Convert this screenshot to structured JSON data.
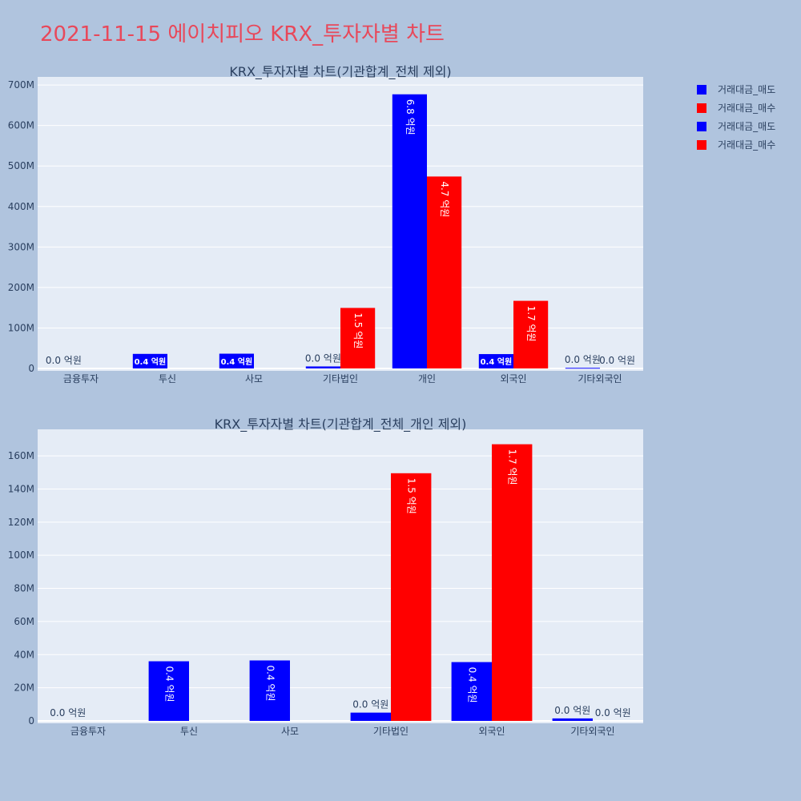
{
  "page_title": "2021-11-15 에이치피오 KRX_투자자별 차트",
  "legend": [
    {
      "label": "거래대금_매도",
      "color": "#0000ff"
    },
    {
      "label": "거래대금_매수",
      "color": "#ff0000"
    },
    {
      "label": "거래대금_매도",
      "color": "#0000ff"
    },
    {
      "label": "거래대금_매수",
      "color": "#ff0000"
    }
  ],
  "chart_data": [
    {
      "type": "bar",
      "title": "KRX_투자자별 차트(기관합계_전체 제외)",
      "categories": [
        "금융투자",
        "투신",
        "사모",
        "기타법인",
        "개인",
        "외국인",
        "기타외국인"
      ],
      "ylim": [
        0,
        720000000
      ],
      "yticks": [
        0,
        100000000,
        200000000,
        300000000,
        400000000,
        500000000,
        600000000,
        700000000
      ],
      "ytick_labels": [
        "0",
        "100M",
        "200M",
        "300M",
        "400M",
        "500M",
        "600M",
        "700M"
      ],
      "grid": true,
      "series": [
        {
          "name": "거래대금_매도",
          "color": "#0000ff",
          "values": [
            0,
            36000000,
            36500000,
            5000000,
            677000000,
            35500000,
            1500000
          ],
          "labels": [
            "0.0 억원",
            "0.4 억원",
            "0.4 억원",
            "0.0 억원",
            "6.8 억원",
            "0.4 억원",
            "0.0 억원"
          ]
        },
        {
          "name": "거래대금_매수",
          "color": "#ff0000",
          "values": [
            0,
            0,
            0,
            149500000,
            474000000,
            167000000,
            0
          ],
          "labels": [
            "",
            "",
            "",
            "1.5 억원",
            "4.7 억원",
            "1.7 억원",
            "0.0 억원"
          ]
        }
      ]
    },
    {
      "type": "bar",
      "title": "KRX_투자자별 차트(기관합계_전체_개인 제외)",
      "categories": [
        "금융투자",
        "투신",
        "사모",
        "기타법인",
        "외국인",
        "기타외국인"
      ],
      "ylim": [
        0,
        176000000
      ],
      "yticks": [
        0,
        20000000,
        40000000,
        60000000,
        80000000,
        100000000,
        120000000,
        140000000,
        160000000
      ],
      "ytick_labels": [
        "0",
        "20M",
        "40M",
        "60M",
        "80M",
        "100M",
        "120M",
        "140M",
        "160M"
      ],
      "grid": true,
      "series": [
        {
          "name": "거래대금_매도",
          "color": "#0000ff",
          "values": [
            0,
            36000000,
            36500000,
            5000000,
            35500000,
            1500000
          ],
          "labels": [
            "0.0 억원",
            "0.4 억원",
            "0.4 억원",
            "0.0 억원",
            "0.4 억원",
            "0.0 억원"
          ]
        },
        {
          "name": "거래대금_매수",
          "color": "#ff0000",
          "values": [
            0,
            0,
            0,
            149500000,
            167000000,
            0
          ],
          "labels": [
            "",
            "",
            "",
            "1.5 억원",
            "1.7 억원",
            "0.0 억원"
          ]
        }
      ]
    }
  ]
}
